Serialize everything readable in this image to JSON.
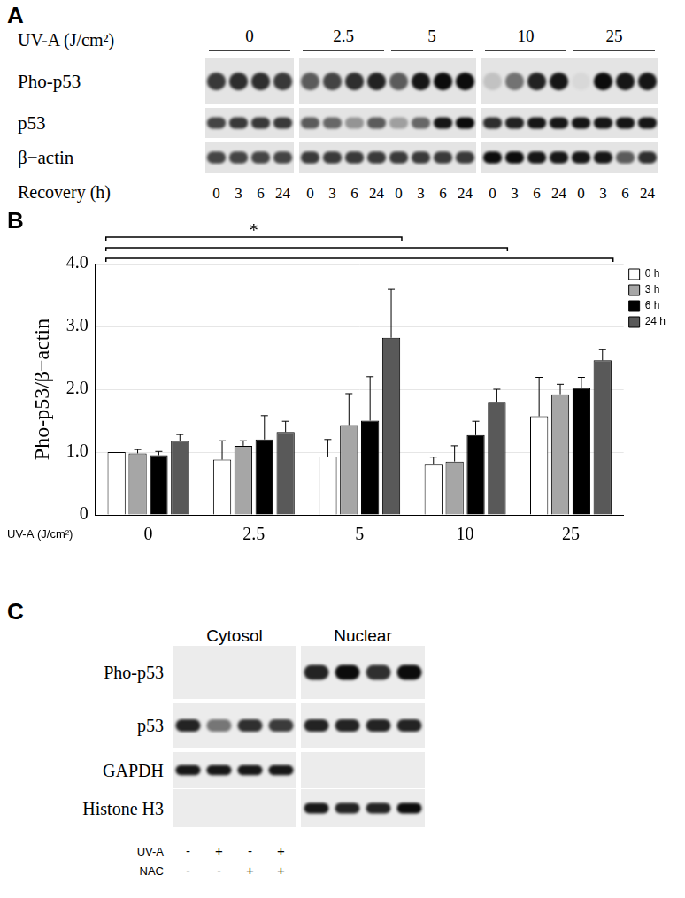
{
  "panel_a": {
    "label": "A",
    "dose_title": "UV-A (J/cm²)",
    "doses": [
      "0",
      "2.5",
      "5",
      "10",
      "25"
    ],
    "recovery_title": "Recovery (h)",
    "recovery": [
      "0",
      "3",
      "6",
      "24"
    ],
    "rows": [
      {
        "name": "Pho-p53",
        "bands": [
          [
            0.75,
            0.8,
            0.8,
            0.75
          ],
          [
            0.6,
            0.7,
            0.8,
            0.85
          ],
          [
            0.6,
            0.9,
            0.95,
            0.95
          ],
          [
            0.15,
            0.5,
            0.85,
            0.9
          ],
          [
            0.05,
            0.95,
            0.9,
            0.9
          ]
        ]
      },
      {
        "name": "p53",
        "bands": [
          [
            0.7,
            0.75,
            0.75,
            0.75
          ],
          [
            0.6,
            0.55,
            0.35,
            0.6
          ],
          [
            0.3,
            0.55,
            0.9,
            0.95
          ],
          [
            0.8,
            0.85,
            0.9,
            0.9
          ],
          [
            0.9,
            0.9,
            0.9,
            0.9
          ]
        ]
      },
      {
        "name": "β−actin",
        "bands": [
          [
            0.7,
            0.7,
            0.7,
            0.7
          ],
          [
            0.75,
            0.75,
            0.75,
            0.75
          ],
          [
            0.75,
            0.75,
            0.75,
            0.75
          ],
          [
            0.95,
            0.95,
            0.9,
            0.9
          ],
          [
            0.9,
            0.9,
            0.6,
            0.8
          ]
        ]
      }
    ]
  },
  "chart_data": {
    "type": "bar",
    "panel_label": "B",
    "y_label": "Pho-p53/β−actin",
    "x_label": "UV-A (J/cm²)",
    "categories": [
      "0",
      "2.5",
      "5",
      "10",
      "25"
    ],
    "series": [
      {
        "name": "0 h",
        "color": "#ffffff",
        "values": [
          1.0,
          0.88,
          0.93,
          0.8,
          1.57
        ],
        "errors": [
          0,
          0.3,
          0.27,
          0.12,
          0.62
        ]
      },
      {
        "name": "3 h",
        "color": "#a6a6a6",
        "values": [
          0.98,
          1.1,
          1.43,
          0.85,
          1.92
        ],
        "errors": [
          0.06,
          0.08,
          0.5,
          0.25,
          0.16
        ]
      },
      {
        "name": "6 h",
        "color": "#000000",
        "values": [
          0.95,
          1.2,
          1.5,
          1.27,
          2.02
        ],
        "errors": [
          0.06,
          0.38,
          0.7,
          0.22,
          0.17
        ]
      },
      {
        "name": "24 h",
        "color": "#595959",
        "values": [
          1.18,
          1.32,
          2.82,
          1.8,
          2.46
        ],
        "errors": [
          0.1,
          0.17,
          0.77,
          0.2,
          0.17
        ]
      }
    ],
    "ylim": [
      0,
      4
    ],
    "yticks": [
      0,
      {
        "value": 1,
        "label": "1.0"
      },
      {
        "value": 2,
        "label": "2.0"
      },
      {
        "value": 3,
        "label": "3.0"
      },
      {
        "value": 4,
        "label": "4.0"
      }
    ],
    "grid": true,
    "legend": "right",
    "significance": {
      "label": "*",
      "from": "0",
      "to": [
        "5",
        "10",
        "25"
      ]
    }
  },
  "panel_c": {
    "label": "C",
    "fractions": [
      "Cytosol",
      "Nuclear"
    ],
    "rows": [
      {
        "name": "Pho-p53",
        "bands": [
          [
            0,
            0,
            0,
            0
          ],
          [
            0.85,
            0.95,
            0.8,
            0.95
          ]
        ]
      },
      {
        "name": "p53",
        "bands": [
          [
            0.85,
            0.5,
            0.8,
            0.75
          ],
          [
            0.85,
            0.85,
            0.85,
            0.85
          ]
        ]
      },
      {
        "name": "GAPDH",
        "bands": [
          [
            0.9,
            0.9,
            0.9,
            0.9
          ],
          [
            0,
            0,
            0,
            0
          ]
        ]
      },
      {
        "name": "Histone H3",
        "bands": [
          [
            0,
            0,
            0,
            0
          ],
          [
            0.9,
            0.85,
            0.85,
            0.95
          ]
        ]
      }
    ],
    "treatments": [
      {
        "name": "UV-A",
        "signs": [
          "-",
          "+",
          "-",
          "+"
        ]
      },
      {
        "name": "NAC",
        "signs": [
          "-",
          "-",
          "+",
          "+"
        ]
      }
    ]
  }
}
